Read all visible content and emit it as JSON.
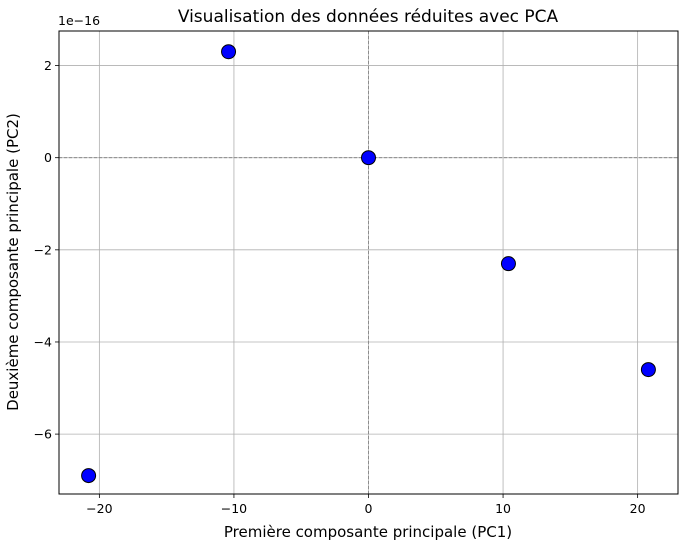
{
  "chart_data": {
    "type": "scatter",
    "title": "Visualisation des données réduites avec PCA",
    "xlabel": "Première composante principale (PC1)",
    "ylabel": "Deuxième composante principale (PC2)",
    "y_offset_label": "1e−16",
    "xlim": [
      -23.0,
      23.0
    ],
    "ylim": [
      -7.3,
      2.75
    ],
    "x_ticks": [
      -20,
      -10,
      0,
      10,
      20
    ],
    "x_tick_labels": [
      "−20",
      "−10",
      "0",
      "10",
      "20"
    ],
    "y_ticks": [
      2,
      0,
      -2,
      -4,
      -6
    ],
    "y_tick_labels": [
      "2",
      "0",
      "−2",
      "−4",
      "−6"
    ],
    "grid": true,
    "reference_lines": {
      "x": 0,
      "y": 0,
      "style": "dashed",
      "color": "#808080"
    },
    "marker_color": "#0000ff",
    "marker_edge_color": "#000000",
    "points": [
      {
        "x": -20.8,
        "y": -6.9
      },
      {
        "x": -10.4,
        "y": 2.3
      },
      {
        "x": 0.0,
        "y": 0.0
      },
      {
        "x": 10.4,
        "y": -2.3
      },
      {
        "x": 20.8,
        "y": -4.6
      }
    ]
  }
}
